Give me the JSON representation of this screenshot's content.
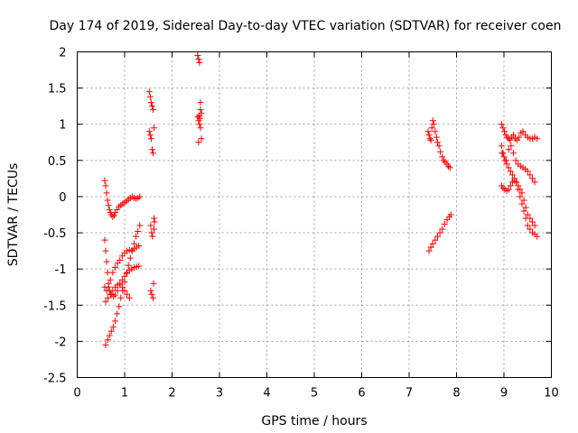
{
  "chart_data": {
    "type": "scatter",
    "title": "Day 174 of 2019, Sidereal Day-to-day VTEC variation (SDTVAR) for receiver coen",
    "xlabel": "GPS time / hours",
    "ylabel": "SDTVAR / TECUs",
    "xlim": [
      0,
      10
    ],
    "ylim": [
      -2.5,
      2
    ],
    "xticks": [
      "0",
      "1",
      "2",
      "3",
      "4",
      "5",
      "6",
      "7",
      "8",
      "9",
      "10"
    ],
    "yticks": [
      "2",
      "1.5",
      "1",
      "0.5",
      "0",
      "-0.5",
      "-1",
      "-1.5",
      "-2",
      "-2.5"
    ],
    "grid": true,
    "marker": "+",
    "color": "#ff0000",
    "series": [
      {
        "name": "SDTVAR",
        "x": [
          0.58,
          0.6,
          0.62,
          0.64,
          0.66,
          0.68,
          0.7,
          0.72,
          0.75,
          0.78,
          0.8,
          0.84,
          0.88,
          0.92,
          0.96,
          1.0,
          1.04,
          1.08,
          1.12,
          1.16,
          1.2,
          1.24,
          1.28,
          1.32,
          0.58,
          0.6,
          0.62,
          0.64,
          0.66,
          0.68,
          0.72,
          0.76,
          0.8,
          0.85,
          0.9,
          0.95,
          1.0,
          1.05,
          1.1,
          1.15,
          1.2,
          1.25,
          1.3,
          0.6,
          0.64,
          0.68,
          0.72,
          0.76,
          0.8,
          0.84,
          0.88,
          0.92,
          0.96,
          1.0,
          1.04,
          1.08,
          1.12,
          1.16,
          1.2,
          1.24,
          1.28,
          1.32,
          0.58,
          0.62,
          0.66,
          0.7,
          0.75,
          0.8,
          0.85,
          0.9,
          0.95,
          1.0,
          1.05,
          1.1,
          1.15,
          1.2,
          1.25,
          1.3,
          0.6,
          0.65,
          0.7,
          0.75,
          0.8,
          0.85,
          0.9,
          0.95,
          1.0,
          1.05,
          1.1,
          1.52,
          1.54,
          1.56,
          1.58,
          1.6,
          1.62,
          1.52,
          1.54,
          1.56,
          1.58,
          1.6,
          1.62,
          1.55,
          1.57,
          1.59,
          1.61,
          1.55,
          1.57,
          1.6,
          1.62,
          1.63,
          2.54,
          2.56,
          2.58,
          2.6,
          2.62,
          2.54,
          2.56,
          2.58,
          2.6,
          2.62,
          2.56,
          2.6,
          2.57,
          2.59,
          7.4,
          7.42,
          7.44,
          7.46,
          7.48,
          7.5,
          7.52,
          7.55,
          7.58,
          7.6,
          7.63,
          7.66,
          7.7,
          7.73,
          7.76,
          7.8,
          7.83,
          7.86,
          7.42,
          7.46,
          7.5,
          7.55,
          7.6,
          7.65,
          7.7,
          7.75,
          7.8,
          7.85,
          7.88,
          8.95,
          8.98,
          9.01,
          9.04,
          9.07,
          9.1,
          9.13,
          9.16,
          9.2,
          9.24,
          9.28,
          9.32,
          9.36,
          9.4,
          9.45,
          9.5,
          9.55,
          9.6,
          9.65,
          9.7,
          8.95,
          8.98,
          9.02,
          9.06,
          9.1,
          9.14,
          9.18,
          9.22,
          9.26,
          9.3,
          9.34,
          9.38,
          9.42,
          9.46,
          9.5,
          9.55,
          9.6,
          9.65,
          8.95,
          8.98,
          9.02,
          9.06,
          9.1,
          9.14,
          9.18,
          9.22,
          9.26,
          9.3,
          9.34,
          9.38,
          9.42,
          9.46,
          9.5,
          9.55,
          9.6,
          9.65,
          9.7,
          8.96,
          9.0,
          9.05,
          9.1,
          9.15,
          9.2,
          9.25,
          9.3,
          9.35,
          9.4,
          9.45,
          9.5,
          9.55,
          9.6,
          9.65
        ],
        "y": [
          0.22,
          0.15,
          0.05,
          -0.05,
          -0.12,
          -0.18,
          -0.22,
          -0.25,
          -0.28,
          -0.26,
          -0.22,
          -0.18,
          -0.14,
          -0.12,
          -0.1,
          -0.08,
          -0.06,
          -0.04,
          -0.02,
          0.0,
          -0.02,
          -0.03,
          -0.02,
          0.0,
          -0.6,
          -0.75,
          -0.9,
          -1.05,
          -1.2,
          -1.3,
          -1.35,
          -1.38,
          -1.36,
          -1.3,
          -1.22,
          -1.15,
          -1.1,
          -1.05,
          -1.02,
          -1.0,
          -0.98,
          -0.97,
          -0.96,
          -2.05,
          -1.98,
          -1.92,
          -1.86,
          -1.8,
          -1.72,
          -1.62,
          -1.52,
          -1.4,
          -1.3,
          -1.18,
          -1.06,
          -0.95,
          -0.85,
          -0.75,
          -0.65,
          -0.55,
          -0.48,
          -0.4,
          -1.25,
          -1.3,
          -1.25,
          -1.15,
          -1.05,
          -0.98,
          -0.92,
          -0.88,
          -0.82,
          -0.78,
          -0.75,
          -0.74,
          -0.74,
          -0.72,
          -0.7,
          -0.68,
          -1.45,
          -1.4,
          -1.35,
          -1.3,
          -1.25,
          -1.22,
          -1.2,
          -1.25,
          -1.3,
          -1.35,
          -1.4,
          1.45,
          1.38,
          1.3,
          1.25,
          1.2,
          0.95,
          0.9,
          0.85,
          0.8,
          0.65,
          0.6,
          -0.3,
          -0.4,
          -0.5,
          -0.55,
          -1.2,
          -1.3,
          -1.35,
          -1.4,
          -0.45,
          -0.35,
          1.95,
          1.9,
          1.85,
          1.3,
          1.15,
          1.1,
          1.05,
          1.0,
          0.95,
          0.8,
          0.75,
          1.2,
          1.12,
          1.08,
          0.9,
          0.85,
          0.8,
          0.78,
          0.95,
          1.05,
          1.0,
          0.9,
          0.82,
          0.75,
          0.7,
          0.62,
          0.55,
          0.5,
          0.48,
          0.45,
          0.42,
          0.4,
          -0.75,
          -0.7,
          -0.65,
          -0.6,
          -0.55,
          -0.5,
          -0.45,
          -0.38,
          -0.32,
          -0.28,
          -0.25,
          1.0,
          0.95,
          0.9,
          0.85,
          0.82,
          0.8,
          0.78,
          0.82,
          0.85,
          0.8,
          0.78,
          0.82,
          0.88,
          0.9,
          0.85,
          0.82,
          0.8,
          0.8,
          0.82,
          0.8,
          0.15,
          0.12,
          0.1,
          0.08,
          0.1,
          0.15,
          0.2,
          0.22,
          0.2,
          0.15,
          0.1,
          0.05,
          -0.05,
          -0.15,
          -0.25,
          -0.3,
          -0.35,
          -0.4,
          0.7,
          0.6,
          0.5,
          0.45,
          0.4,
          0.35,
          0.3,
          0.25,
          0.2,
          0.1,
          0.0,
          -0.1,
          -0.2,
          -0.3,
          -0.4,
          -0.45,
          -0.5,
          -0.52,
          -0.55,
          0.6,
          0.55,
          0.5,
          0.65,
          0.7,
          0.6,
          0.5,
          0.45,
          0.42,
          0.4,
          0.38,
          0.35,
          0.3,
          0.25,
          0.2
        ]
      }
    ]
  }
}
